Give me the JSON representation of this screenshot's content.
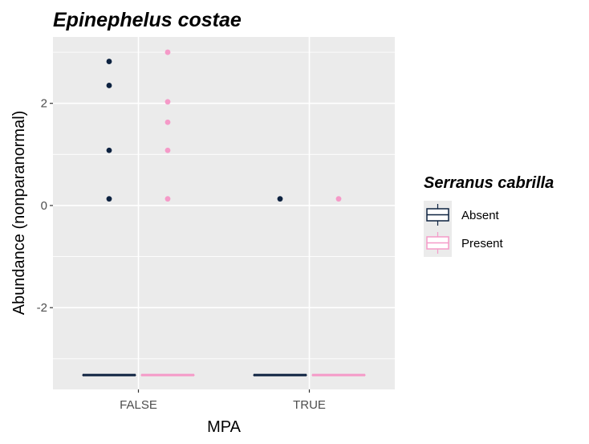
{
  "chart_data": {
    "type": "boxplot",
    "title": "Epinephelus costae",
    "xlabel": "MPA",
    "ylabel": "Abundance (nonparanormal)",
    "categories": [
      "FALSE",
      "TRUE"
    ],
    "ylim": [
      -3.6,
      3.3
    ],
    "yticks": [
      -2,
      0,
      2
    ],
    "grid": true,
    "legend": {
      "title": "Serranus cabrilla",
      "position": "right"
    },
    "series": [
      {
        "name": "Absent",
        "color": "#0d2240",
        "boxes": [
          {
            "category": "FALSE",
            "median": -3.32,
            "q1": -3.32,
            "q3": -3.32,
            "outliers": [
              0.13,
              1.08,
              2.35,
              2.82
            ]
          },
          {
            "category": "TRUE",
            "median": -3.32,
            "q1": -3.32,
            "q3": -3.32,
            "outliers": [
              0.13
            ]
          }
        ]
      },
      {
        "name": "Present",
        "color": "#f59ac8",
        "boxes": [
          {
            "category": "FALSE",
            "median": -3.32,
            "q1": -3.32,
            "q3": -3.32,
            "outliers": [
              0.13,
              1.08,
              1.63,
              2.03,
              3.0
            ]
          },
          {
            "category": "TRUE",
            "median": -3.32,
            "q1": -3.32,
            "q3": -3.32,
            "outliers": [
              0.13
            ]
          }
        ]
      }
    ]
  }
}
